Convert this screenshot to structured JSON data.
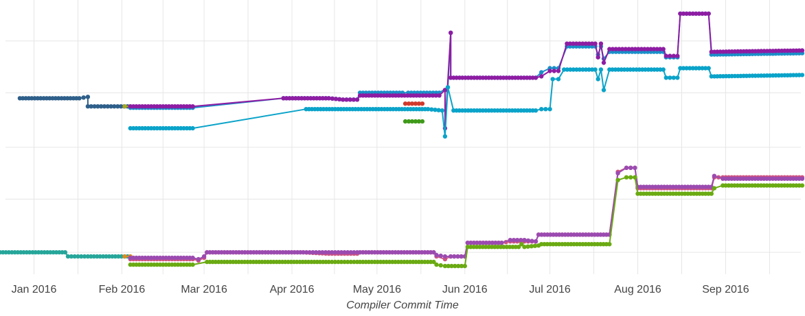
{
  "chart_data": {
    "type": "line",
    "title": "",
    "xlabel": "Compiler Commit Time",
    "ylabel": "",
    "xlim": [
      "2015-12-20",
      "2016-09-29"
    ],
    "ylim": [
      0,
      100
    ],
    "x_ticks": [
      {
        "date": "2016-01-01",
        "label": "Jan 2016"
      },
      {
        "date": "2016-02-01",
        "label": "Feb 2016"
      },
      {
        "date": "2016-03-01",
        "label": "Mar 2016"
      },
      {
        "date": "2016-04-01",
        "label": "Apr 2016"
      },
      {
        "date": "2016-05-01",
        "label": "May 2016"
      },
      {
        "date": "2016-06-01",
        "label": "Jun 2016"
      },
      {
        "date": "2016-07-01",
        "label": "Jul 2016"
      },
      {
        "date": "2016-08-01",
        "label": "Aug 2016"
      },
      {
        "date": "2016-09-01",
        "label": "Sep 2016"
      }
    ],
    "y_gridlines": [
      7.5,
      27,
      46,
      66,
      85
    ],
    "grid": true,
    "series": [
      {
        "color": "#2e5f8a",
        "points": [
          [
            "2015-12-27",
            64
          ],
          [
            "2016-01-17",
            64
          ],
          [
            "2016-01-20",
            64.5
          ],
          [
            "2016-01-20",
            61
          ],
          [
            "2016-01-27",
            61
          ],
          [
            "2016-02-03",
            61
          ]
        ]
      },
      {
        "color": "#a8a820",
        "points": [
          [
            "2016-02-02",
            61
          ],
          [
            "2016-02-04",
            61
          ]
        ]
      },
      {
        "color": "#1a8fc8",
        "points": [
          [
            "2016-02-04",
            60.5
          ],
          [
            "2016-02-26",
            60.5
          ],
          [
            "2016-03-29",
            64
          ],
          [
            "2016-04-14",
            64
          ],
          [
            "2016-04-19",
            63.5
          ],
          [
            "2016-04-24",
            63.5
          ],
          [
            "2016-04-25",
            66
          ],
          [
            "2016-05-10",
            66
          ],
          [
            "2016-05-12",
            66
          ],
          [
            "2016-05-23",
            66
          ],
          [
            "2016-05-26",
            68
          ],
          [
            "2016-05-27",
            88
          ],
          [
            "2016-05-27",
            71.5
          ],
          [
            "2016-06-26",
            71.5
          ],
          [
            "2016-06-28",
            73.5
          ],
          [
            "2016-07-01",
            75
          ],
          [
            "2016-07-04",
            75
          ],
          [
            "2016-07-07",
            83
          ],
          [
            "2016-07-17",
            83
          ],
          [
            "2016-07-18",
            80
          ],
          [
            "2016-07-19",
            83
          ],
          [
            "2016-07-20",
            78.5
          ],
          [
            "2016-07-22",
            81
          ],
          [
            "2016-07-30",
            81
          ],
          [
            "2016-08-10",
            81
          ],
          [
            "2016-08-11",
            79
          ],
          [
            "2016-08-15",
            79
          ],
          [
            "2016-08-16",
            95
          ],
          [
            "2016-08-26",
            95
          ],
          [
            "2016-08-27",
            80
          ],
          [
            "2016-09-28",
            80.5
          ]
        ]
      },
      {
        "color": "#8e1da3",
        "points": [
          [
            "2016-02-04",
            61
          ],
          [
            "2016-02-26",
            61
          ],
          [
            "2016-03-29",
            64
          ],
          [
            "2016-04-14",
            64
          ],
          [
            "2016-04-19",
            63.5
          ],
          [
            "2016-04-24",
            63.5
          ],
          [
            "2016-04-25",
            65
          ],
          [
            "2016-05-16",
            65
          ],
          [
            "2016-05-23",
            65
          ],
          [
            "2016-05-25",
            67
          ],
          [
            "2016-05-25",
            53
          ],
          [
            "2016-05-27",
            88
          ],
          [
            "2016-05-27",
            71.5
          ],
          [
            "2016-06-26",
            71.5
          ],
          [
            "2016-06-28",
            72
          ],
          [
            "2016-07-01",
            74
          ],
          [
            "2016-07-04",
            74
          ],
          [
            "2016-07-07",
            84
          ],
          [
            "2016-07-17",
            84
          ],
          [
            "2016-07-18",
            79
          ],
          [
            "2016-07-19",
            84
          ],
          [
            "2016-07-20",
            77
          ],
          [
            "2016-07-22",
            82
          ],
          [
            "2016-07-30",
            82
          ],
          [
            "2016-08-10",
            82
          ],
          [
            "2016-08-11",
            79.5
          ],
          [
            "2016-08-15",
            79.5
          ],
          [
            "2016-08-16",
            95
          ],
          [
            "2016-08-26",
            95
          ],
          [
            "2016-08-27",
            81
          ],
          [
            "2016-09-28",
            81.5
          ]
        ]
      },
      {
        "color": "#0aa3c9",
        "points": [
          [
            "2016-02-04",
            53
          ],
          [
            "2016-02-26",
            53
          ],
          [
            "2016-04-06",
            60
          ],
          [
            "2016-05-19",
            60
          ],
          [
            "2016-05-24",
            59.5
          ],
          [
            "2016-05-25",
            50
          ],
          [
            "2016-05-26",
            68
          ],
          [
            "2016-05-28",
            59.5
          ],
          [
            "2016-06-26",
            59.5
          ],
          [
            "2016-06-28",
            60
          ],
          [
            "2016-07-01",
            60
          ],
          [
            "2016-07-02",
            71
          ],
          [
            "2016-07-04",
            71
          ],
          [
            "2016-07-06",
            74.5
          ],
          [
            "2016-07-17",
            74.5
          ],
          [
            "2016-07-18",
            71
          ],
          [
            "2016-07-19",
            74.5
          ],
          [
            "2016-07-20",
            67
          ],
          [
            "2016-07-22",
            74.5
          ],
          [
            "2016-08-10",
            74.5
          ],
          [
            "2016-08-11",
            71.5
          ],
          [
            "2016-08-15",
            71.5
          ],
          [
            "2016-08-16",
            75
          ],
          [
            "2016-08-26",
            75
          ],
          [
            "2016-08-27",
            72
          ],
          [
            "2016-09-28",
            72.5
          ]
        ]
      },
      {
        "color": "#d0392b",
        "points": [
          [
            "2016-05-11",
            62
          ],
          [
            "2016-05-17",
            62
          ]
        ]
      },
      {
        "color": "#3f9a19",
        "points": [
          [
            "2016-05-11",
            55.5
          ],
          [
            "2016-05-17",
            55.5
          ]
        ]
      },
      {
        "color": "#26a69a",
        "points": [
          [
            "2015-12-20",
            7.5
          ],
          [
            "2016-01-12",
            7.5
          ],
          [
            "2016-01-13",
            6
          ],
          [
            "2016-01-20",
            6
          ],
          [
            "2016-02-03",
            6
          ]
        ]
      },
      {
        "color": "#e08a20",
        "points": [
          [
            "2016-02-02",
            6
          ],
          [
            "2016-02-04",
            6
          ]
        ]
      },
      {
        "color": "#d05580",
        "points": [
          [
            "2016-02-04",
            5
          ],
          [
            "2016-02-26",
            5
          ],
          [
            "2016-02-28",
            4.5
          ],
          [
            "2016-03-01",
            5.5
          ],
          [
            "2016-03-02",
            7.5
          ],
          [
            "2016-04-05",
            7.5
          ],
          [
            "2016-04-14",
            7
          ],
          [
            "2016-04-24",
            7
          ],
          [
            "2016-04-25",
            7.5
          ],
          [
            "2016-05-21",
            7.5
          ],
          [
            "2016-05-22",
            6
          ],
          [
            "2016-05-25",
            5
          ],
          [
            "2016-05-27",
            6
          ],
          [
            "2016-06-01",
            6
          ],
          [
            "2016-06-02",
            11
          ],
          [
            "2016-06-14",
            11
          ],
          [
            "2016-06-17",
            11.5
          ],
          [
            "2016-06-22",
            11.5
          ],
          [
            "2016-06-26",
            11.5
          ],
          [
            "2016-06-27",
            14
          ],
          [
            "2016-07-22",
            14
          ],
          [
            "2016-07-25",
            37
          ],
          [
            "2016-07-28",
            38.5
          ],
          [
            "2016-07-31",
            38.5
          ],
          [
            "2016-08-01",
            31
          ],
          [
            "2016-08-27",
            31
          ],
          [
            "2016-08-28",
            35
          ],
          [
            "2016-08-31",
            35
          ],
          [
            "2016-09-28",
            35
          ]
        ]
      },
      {
        "color": "#9b4bb0",
        "points": [
          [
            "2016-02-04",
            5.5
          ],
          [
            "2016-02-26",
            5.5
          ],
          [
            "2016-02-28",
            5
          ],
          [
            "2016-03-01",
            6
          ],
          [
            "2016-03-02",
            7.5
          ],
          [
            "2016-04-05",
            7.5
          ],
          [
            "2016-04-14",
            7.5
          ],
          [
            "2016-04-24",
            7.5
          ],
          [
            "2016-04-25",
            7.5
          ],
          [
            "2016-05-21",
            7.5
          ],
          [
            "2016-05-22",
            6.5
          ],
          [
            "2016-05-25",
            6
          ],
          [
            "2016-05-27",
            6
          ],
          [
            "2016-06-01",
            6
          ],
          [
            "2016-06-02",
            11
          ],
          [
            "2016-06-14",
            11
          ],
          [
            "2016-06-17",
            12
          ],
          [
            "2016-06-22",
            12
          ],
          [
            "2016-06-26",
            11.5
          ],
          [
            "2016-06-27",
            14
          ],
          [
            "2016-07-22",
            14
          ],
          [
            "2016-07-25",
            36.5
          ],
          [
            "2016-07-28",
            38.5
          ],
          [
            "2016-07-31",
            38.5
          ],
          [
            "2016-08-01",
            31.5
          ],
          [
            "2016-08-27",
            31.5
          ],
          [
            "2016-08-28",
            35.5
          ],
          [
            "2016-08-31",
            34.5
          ],
          [
            "2016-09-28",
            34.5
          ]
        ]
      },
      {
        "color": "#6aaa12",
        "points": [
          [
            "2016-02-04",
            3
          ],
          [
            "2016-02-26",
            3
          ],
          [
            "2016-03-02",
            4
          ],
          [
            "2016-04-14",
            4
          ],
          [
            "2016-04-24",
            4
          ],
          [
            "2016-04-25",
            4
          ],
          [
            "2016-05-21",
            4
          ],
          [
            "2016-05-22",
            3
          ],
          [
            "2016-05-25",
            2.5
          ],
          [
            "2016-06-01",
            2.5
          ],
          [
            "2016-06-02",
            9.5
          ],
          [
            "2016-06-20",
            9.5
          ],
          [
            "2016-06-21",
            10.5
          ],
          [
            "2016-06-22",
            9.5
          ],
          [
            "2016-06-27",
            10
          ],
          [
            "2016-06-28",
            10.5
          ],
          [
            "2016-07-22",
            10.5
          ],
          [
            "2016-07-25",
            34
          ],
          [
            "2016-07-28",
            35
          ],
          [
            "2016-07-31",
            35
          ],
          [
            "2016-08-01",
            29
          ],
          [
            "2016-08-27",
            29
          ],
          [
            "2016-08-28",
            31
          ],
          [
            "2016-08-31",
            32
          ],
          [
            "2016-09-28",
            32
          ]
        ]
      }
    ]
  }
}
